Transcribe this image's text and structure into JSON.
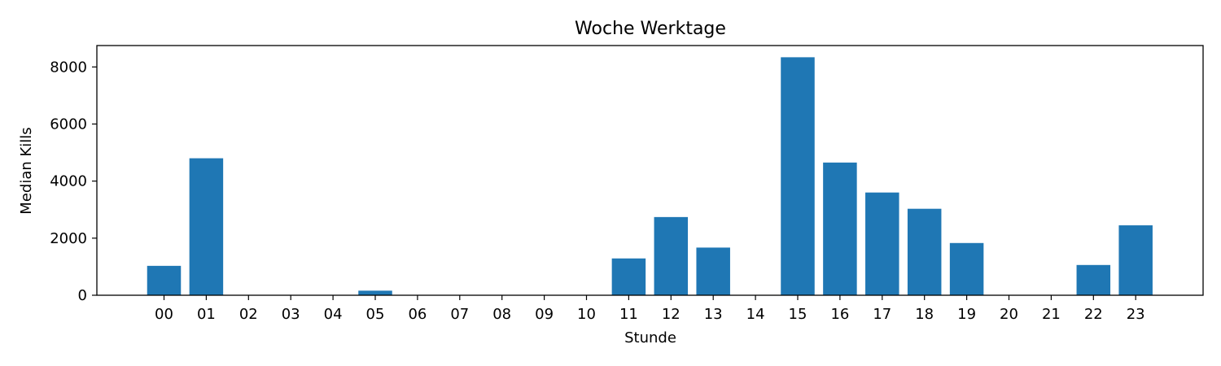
{
  "chart_data": {
    "type": "bar",
    "title": "Woche Werktage",
    "xlabel": "Stunde",
    "ylabel": "Median Kills",
    "categories": [
      "00",
      "01",
      "02",
      "03",
      "04",
      "05",
      "06",
      "07",
      "08",
      "09",
      "10",
      "11",
      "12",
      "13",
      "14",
      "15",
      "16",
      "17",
      "18",
      "19",
      "20",
      "21",
      "22",
      "23"
    ],
    "values": [
      1030,
      4800,
      0,
      0,
      0,
      160,
      0,
      0,
      0,
      0,
      0,
      1290,
      2740,
      1670,
      0,
      8340,
      4650,
      3600,
      3030,
      1830,
      0,
      0,
      1060,
      2450
    ],
    "ylim": [
      0,
      8750
    ],
    "yticks": [
      0,
      2000,
      4000,
      6000,
      8000
    ],
    "grid": false,
    "bar_color": "#1f77b4"
  }
}
